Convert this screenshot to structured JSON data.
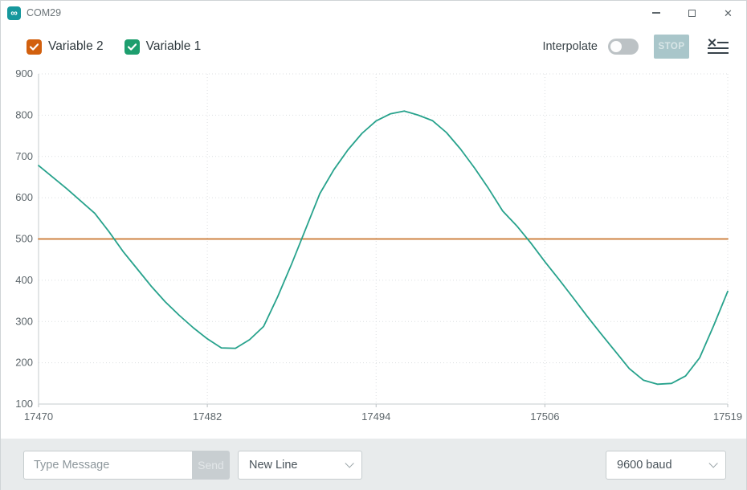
{
  "window": {
    "title": "COM29",
    "app_icon_glyph": "∞"
  },
  "toolbar": {
    "legend": [
      {
        "label": "Variable 2",
        "color": "#d2600e",
        "checked": true
      },
      {
        "label": "Variable 1",
        "color": "#1d9e6e",
        "checked": true
      }
    ],
    "interpolate_label": "Interpolate",
    "interpolate_on": false,
    "stop_label": "STOP"
  },
  "chart_data": {
    "type": "line",
    "title": "",
    "xlabel": "",
    "ylabel": "",
    "grid": true,
    "xlim": [
      17470,
      17519
    ],
    "ylim": [
      100,
      900
    ],
    "x_ticks": [
      17470,
      17482,
      17494,
      17506,
      17519
    ],
    "y_ticks": [
      100,
      200,
      300,
      400,
      500,
      600,
      700,
      800,
      900
    ],
    "series": [
      {
        "name": "Variable 2",
        "color": "#c9752e",
        "x": [
          17470,
          17519
        ],
        "values": [
          500,
          500
        ]
      },
      {
        "name": "Variable 1",
        "color": "#27a28c",
        "x_start": 17470,
        "x_step": 1,
        "values": [
          678,
          650,
          622,
          592,
          562,
          518,
          470,
          428,
          386,
          348,
          315,
          285,
          258,
          236,
          235,
          256,
          288,
          360,
          440,
          525,
          610,
          668,
          716,
          756,
          786,
          803,
          810,
          800,
          787,
          758,
          718,
          672,
          622,
          568,
          532,
          490,
          445,
          402,
          358,
          313,
          270,
          228,
          186,
          158,
          148,
          150,
          168,
          212,
          290,
          373
        ]
      }
    ]
  },
  "bottom_bar": {
    "message_placeholder": "Type Message",
    "send_label": "Send",
    "line_ending_value": "New Line",
    "baud_rate_value": "9600 baud"
  }
}
